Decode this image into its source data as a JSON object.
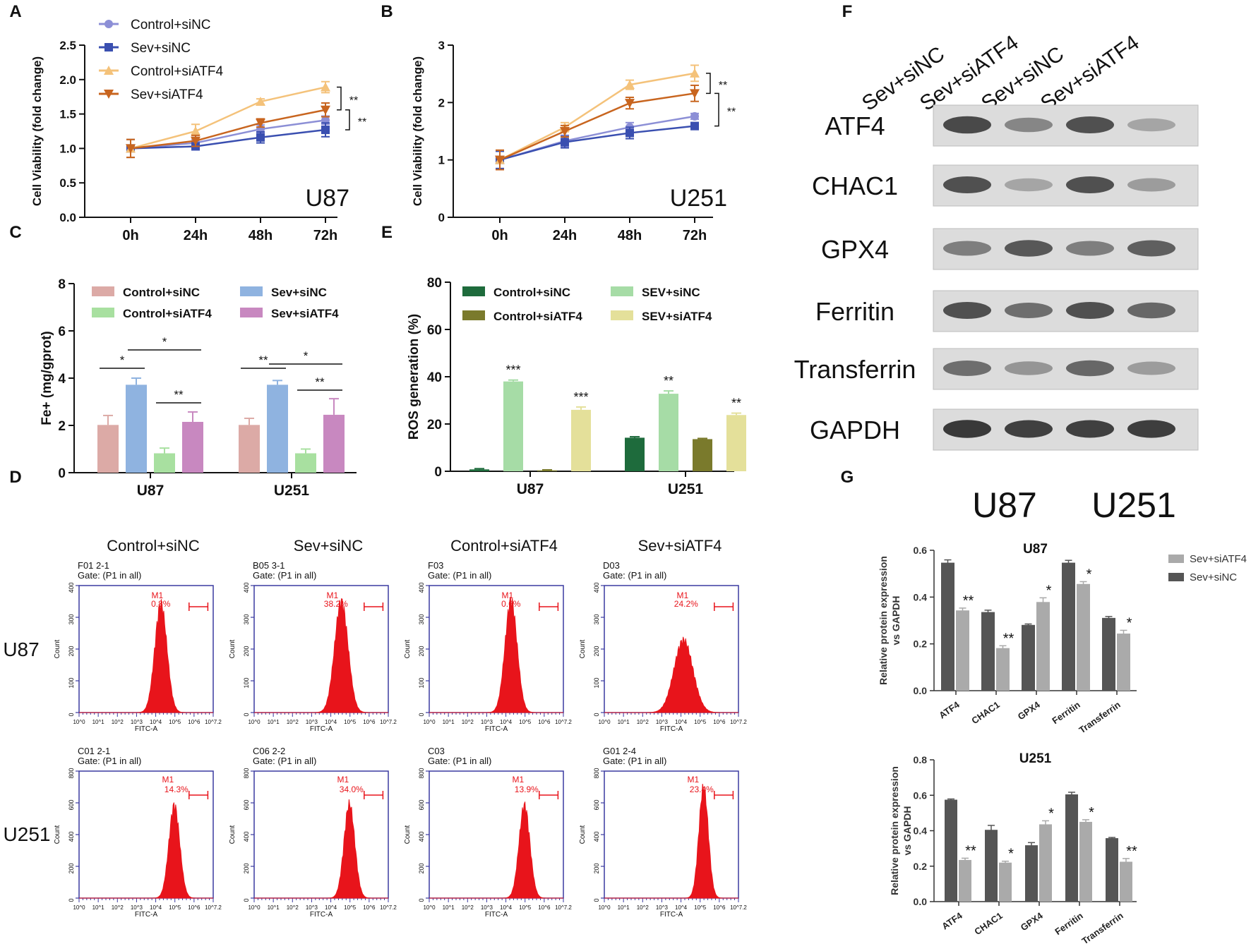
{
  "panel_letters": [
    "A",
    "B",
    "C",
    "D",
    "E",
    "F",
    "G"
  ],
  "colors": {
    "control_sinc": "#8c8fd6",
    "sev_sinc": "#3a4fb0",
    "control_siatf4": "#f4c27a",
    "sev_siatf4": "#c8651f",
    "c_control_sinc": "#dcaaa6",
    "c_sev_sinc": "#8fb3e0",
    "c_control_siatf4": "#a8e0a0",
    "c_sev_siatf4": "#c888c0",
    "e_control_sinc": "#1e6b3c",
    "e_sev_sinc": "#a6dca6",
    "e_control_siatf4": "#7a7a2c",
    "e_sev_siatf4": "#e4e09a",
    "g_sev_sinc": "#555555",
    "g_sev_siatf4": "#aaaaaa",
    "flow_red": "#e8141b",
    "flow_frame": "#3a3aa0"
  },
  "chart_data": [
    {
      "id": "A",
      "type": "line",
      "title": "",
      "cell_line": "U87",
      "xlabel": "",
      "ylabel": "Cell Viability (fold change)",
      "categories": [
        "0h",
        "24h",
        "48h",
        "72h"
      ],
      "ylim": [
        0,
        2.5
      ],
      "yticks": [
        "0.0",
        "0.5",
        "1.0",
        "1.5",
        "2.0",
        "2.5"
      ],
      "series": [
        {
          "name": "Control+siNC",
          "values": [
            1.0,
            1.08,
            1.28,
            1.41
          ],
          "err": [
            0.13,
            0.05,
            0.06,
            0.06
          ],
          "marker": "circle"
        },
        {
          "name": "Sev+siNC",
          "values": [
            1.0,
            1.03,
            1.16,
            1.27
          ],
          "err": [
            0.13,
            0.05,
            0.08,
            0.1
          ],
          "marker": "square"
        },
        {
          "name": "Control+siATF4",
          "values": [
            1.0,
            1.25,
            1.68,
            1.89
          ],
          "err": [
            0.13,
            0.1,
            0.04,
            0.08
          ],
          "marker": "triangle-up"
        },
        {
          "name": "Sev+siATF4",
          "values": [
            1.0,
            1.11,
            1.37,
            1.56
          ],
          "err": [
            0.13,
            0.08,
            0.06,
            0.1
          ],
          "marker": "triangle-down"
        }
      ],
      "significance": [
        "**",
        "**"
      ]
    },
    {
      "id": "B",
      "type": "line",
      "title": "",
      "cell_line": "U251",
      "xlabel": "",
      "ylabel": "Cell Viability (fold change)",
      "categories": [
        "0h",
        "24h",
        "48h",
        "72h"
      ],
      "ylim": [
        0,
        3
      ],
      "yticks": [
        "0",
        "1",
        "2",
        "3"
      ],
      "series": [
        {
          "name": "Control+siNC",
          "values": [
            1.0,
            1.33,
            1.57,
            1.76
          ],
          "err": [
            0.15,
            0.1,
            0.08,
            0.05
          ]
        },
        {
          "name": "Sev+siNC",
          "values": [
            1.0,
            1.31,
            1.47,
            1.59
          ],
          "err": [
            0.15,
            0.1,
            0.1,
            0.06
          ]
        },
        {
          "name": "Control+siATF4",
          "values": [
            1.0,
            1.57,
            2.31,
            2.51
          ],
          "err": [
            0.17,
            0.08,
            0.08,
            0.14
          ]
        },
        {
          "name": "Sev+siATF4",
          "values": [
            1.0,
            1.5,
            1.99,
            2.16
          ],
          "err": [
            0.17,
            0.1,
            0.1,
            0.14
          ]
        }
      ],
      "significance": [
        "**",
        "**"
      ]
    },
    {
      "id": "C",
      "type": "bar",
      "title": "",
      "xlabel": "",
      "ylabel": "Fe+ (mg/gprot)",
      "categories": [
        "U87",
        "U251"
      ],
      "ylim": [
        0,
        8
      ],
      "yticks": [
        "0",
        "2",
        "4",
        "6",
        "8"
      ],
      "series": [
        {
          "name": "Control+siNC",
          "values": [
            2.02,
            2.02
          ],
          "err": [
            0.4,
            0.28
          ]
        },
        {
          "name": "Sev+siNC",
          "values": [
            3.72,
            3.72
          ],
          "err": [
            0.28,
            0.18
          ]
        },
        {
          "name": "Control+siATF4",
          "values": [
            0.82,
            0.82
          ],
          "err": [
            0.22,
            0.18
          ]
        },
        {
          "name": "Sev+siATF4",
          "values": [
            2.15,
            2.45
          ],
          "err": [
            0.42,
            0.68
          ]
        }
      ],
      "significance": {
        "U87": [
          {
            "from": 0,
            "to": 1,
            "label": "*"
          },
          {
            "from": 1,
            "to": 3,
            "label": "*"
          },
          {
            "from": 2,
            "to": 3,
            "label": "**"
          }
        ],
        "U251": [
          {
            "from": 0,
            "to": 1,
            "label": "**"
          },
          {
            "from": 1,
            "to": 3,
            "label": "*"
          },
          {
            "from": 2,
            "to": 3,
            "label": "**"
          }
        ]
      }
    },
    {
      "id": "E",
      "type": "bar",
      "title": "",
      "xlabel": "",
      "ylabel": "ROS generation (%)",
      "categories": [
        "U87",
        "U251"
      ],
      "ylim": [
        0,
        80
      ],
      "yticks": [
        "0",
        "20",
        "40",
        "60",
        "80"
      ],
      "series": [
        {
          "name": "Control+siNC",
          "values": [
            0.8,
            14.2
          ],
          "err": [
            0.3,
            0.4
          ],
          "stars": [
            "",
            ""
          ]
        },
        {
          "name": "SEV+siNC",
          "values": [
            38.0,
            32.8
          ],
          "err": [
            0.6,
            1.2
          ],
          "stars": [
            "***",
            "**"
          ]
        },
        {
          "name": "Control+siATF4",
          "values": [
            0.4,
            13.6
          ],
          "err": [
            0.2,
            0.3
          ],
          "stars": [
            "",
            ""
          ]
        },
        {
          "name": "SEV+siATF4",
          "values": [
            26.0,
            23.8
          ],
          "err": [
            1.2,
            0.8
          ],
          "stars": [
            "***",
            "**"
          ]
        }
      ]
    },
    {
      "id": "G-U87",
      "type": "bar",
      "title": "U87",
      "xlabel": "",
      "ylabel": "Relative protein expression vs GAPDH",
      "categories": [
        "ATF4",
        "CHAC1",
        "GPX4",
        "Ferritin",
        "Transferrin"
      ],
      "ylim": [
        0,
        0.6
      ],
      "yticks": [
        "0.0",
        "0.2",
        "0.4",
        "0.6"
      ],
      "series": [
        {
          "name": "Sev+siNC",
          "values": [
            0.547,
            0.336,
            0.281,
            0.547,
            0.311
          ],
          "err": [
            0.012,
            0.008,
            0.004,
            0.01,
            0.006
          ]
        },
        {
          "name": "Sev+siATF4",
          "values": [
            0.343,
            0.182,
            0.379,
            0.456,
            0.244
          ],
          "err": [
            0.01,
            0.01,
            0.018,
            0.01,
            0.014
          ]
        }
      ],
      "stars": [
        "**",
        "**",
        "*",
        "*",
        "*"
      ]
    },
    {
      "id": "G-U251",
      "type": "bar",
      "title": "U251",
      "xlabel": "",
      "ylabel": "Relative protein expression vs GAPDH",
      "categories": [
        "ATF4",
        "CHAC1",
        "GPX4",
        "Ferritin",
        "Transferrin"
      ],
      "ylim": [
        0,
        0.8
      ],
      "yticks": [
        "0.0",
        "0.2",
        "0.4",
        "0.6",
        "0.8"
      ],
      "series": [
        {
          "name": "Sev+siNC",
          "values": [
            0.575,
            0.405,
            0.318,
            0.605,
            0.358
          ],
          "err": [
            0.004,
            0.025,
            0.015,
            0.012,
            0.004
          ]
        },
        {
          "name": "Sev+siATF4",
          "values": [
            0.235,
            0.22,
            0.436,
            0.45,
            0.225
          ],
          "err": [
            0.01,
            0.008,
            0.02,
            0.012,
            0.018
          ]
        }
      ],
      "stars": [
        "**",
        "*",
        "*",
        "*",
        "**"
      ]
    }
  ],
  "flow": {
    "panel": "D",
    "groups": [
      "Control+siNC",
      "Sev+siNC",
      "Control+siATF4",
      "Sev+siATF4"
    ],
    "rows": [
      "U87",
      "U251"
    ],
    "xlabel": "FITC-A",
    "ylabel": "Count",
    "gate": "Gate: (P1 in all)",
    "marker": "M1",
    "plots": [
      {
        "sample": "F01 2-1",
        "pct": "0.8%",
        "peak": 0.61,
        "height": 0.9,
        "spread": 0.045
      },
      {
        "sample": "B05 3-1",
        "pct": "38.2%",
        "peak": 0.65,
        "height": 0.92,
        "spread": 0.05
      },
      {
        "sample": "F03",
        "pct": "0.6%",
        "peak": 0.61,
        "height": 0.93,
        "spread": 0.045
      },
      {
        "sample": "D03",
        "pct": "24.2%",
        "peak": 0.59,
        "height": 0.6,
        "spread": 0.07
      },
      {
        "sample": "C01 2-1",
        "pct": "14.3%",
        "peak": 0.71,
        "height": 0.77,
        "spread": 0.04
      },
      {
        "sample": "C06 2-2",
        "pct": "34.0%",
        "peak": 0.71,
        "height": 0.78,
        "spread": 0.04
      },
      {
        "sample": "C03",
        "pct": "13.9%",
        "peak": 0.71,
        "height": 0.77,
        "spread": 0.04
      },
      {
        "sample": "G01 2-4",
        "pct": "23.4%",
        "peak": 0.74,
        "height": 0.92,
        "spread": 0.035
      }
    ],
    "u87_yticks": [
      "0",
      "100",
      "200",
      "300",
      "400"
    ],
    "u251_yticks": [
      "0",
      "200",
      "400",
      "600",
      "800"
    ],
    "xticks": [
      "10^0",
      "10^1",
      "10^2",
      "10^3",
      "10^4",
      "10^5",
      "10^6",
      "10^7.2"
    ]
  },
  "western": {
    "panel": "F",
    "lanes": [
      "Sev+siNC",
      "Sev+siATF4",
      "Sev+siNC",
      "Sev+siATF4"
    ],
    "proteins": [
      {
        "name": "ATF4",
        "intensities": [
          0.85,
          0.45,
          0.8,
          0.25
        ]
      },
      {
        "name": "CHAC1",
        "intensities": [
          0.8,
          0.25,
          0.8,
          0.3
        ]
      },
      {
        "name": "GPX4",
        "intensities": [
          0.5,
          0.75,
          0.5,
          0.7
        ]
      },
      {
        "name": "Ferritin",
        "intensities": [
          0.8,
          0.6,
          0.8,
          0.65
        ]
      },
      {
        "name": "Transferrin",
        "intensities": [
          0.6,
          0.35,
          0.65,
          0.3
        ]
      },
      {
        "name": "GAPDH",
        "intensities": [
          0.95,
          0.9,
          0.9,
          0.92
        ]
      }
    ],
    "cell_lines": [
      "U87",
      "U251"
    ]
  }
}
